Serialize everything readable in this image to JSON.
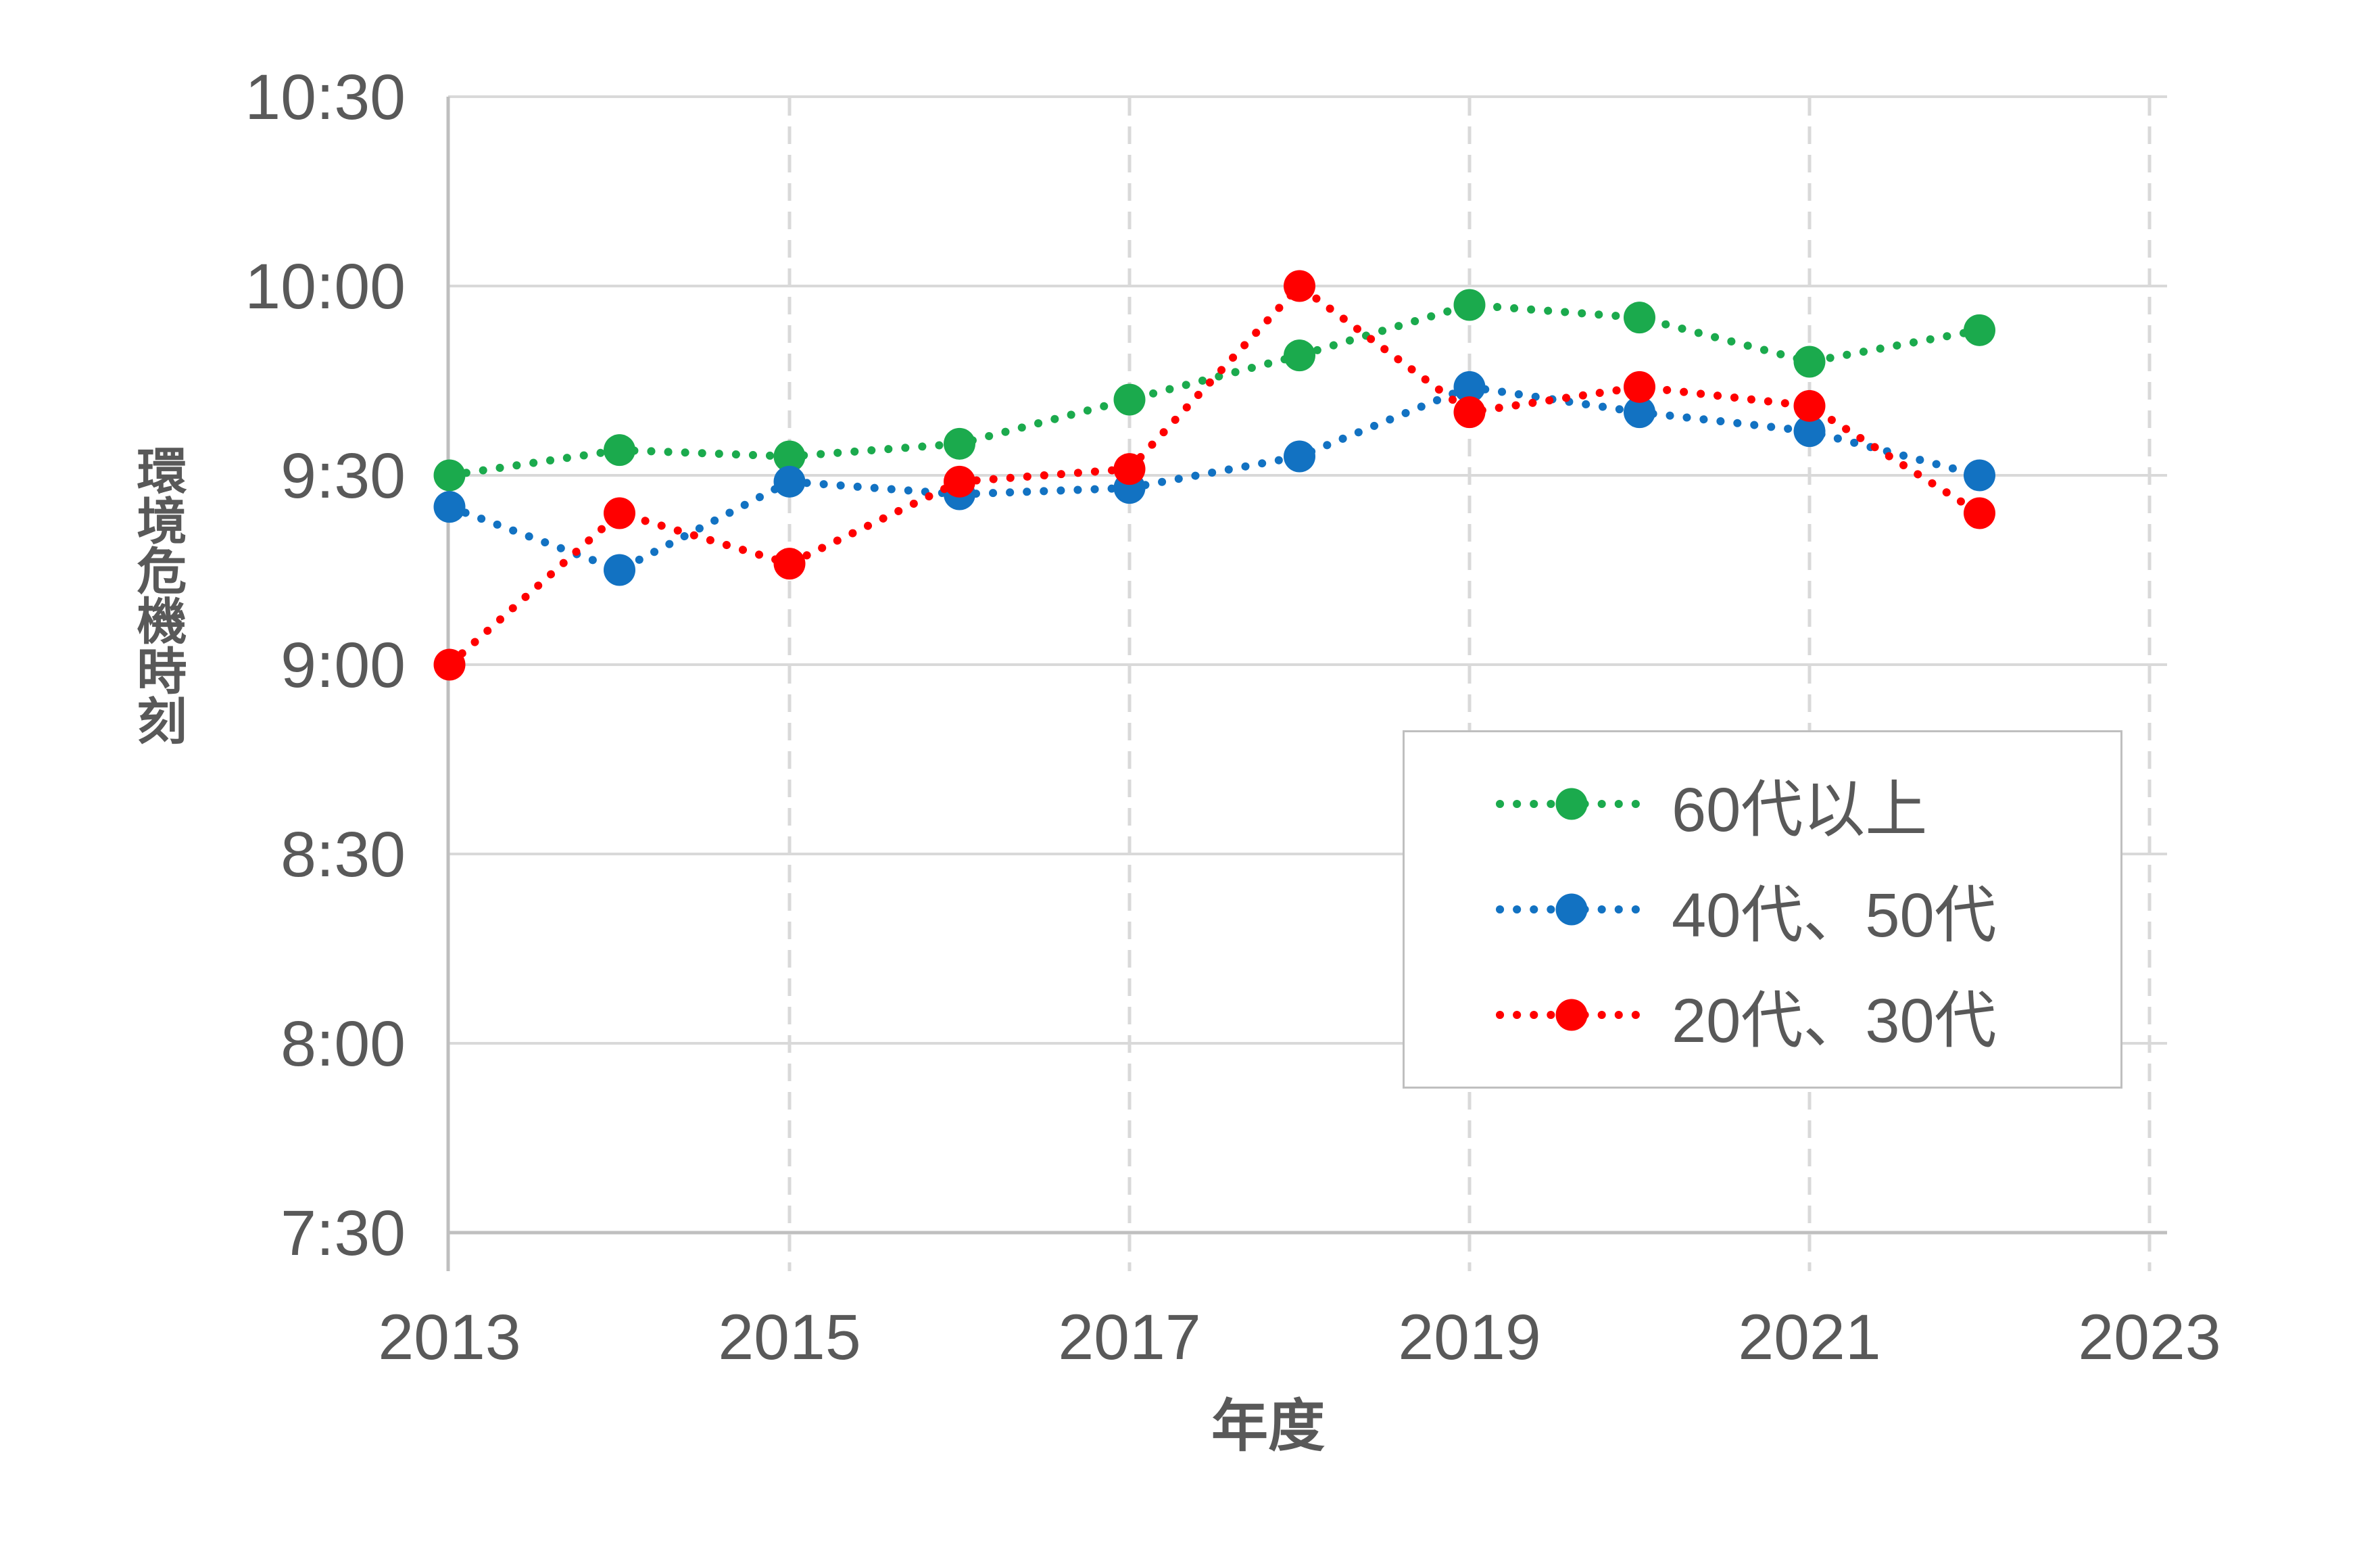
{
  "chart_data": {
    "type": "line",
    "style": "dotted-lines-with-circle-markers",
    "xlabel": "年度",
    "ylabel": "環境危機時刻",
    "x": [
      2013,
      2014,
      2015,
      2016,
      2017,
      2018,
      2019,
      2020,
      2021,
      2022
    ],
    "x_tick_labels": [
      "2013",
      "2015",
      "2017",
      "2019",
      "2021",
      "2023"
    ],
    "y_tick_labels": [
      "10:30",
      "10:00",
      "9:30",
      "9:00",
      "8:30",
      "8:00",
      "7:30"
    ],
    "xlim": [
      2013,
      2023
    ],
    "ylim": [
      "7:30",
      "10:30"
    ],
    "grid": "horizontal solid gridlines every 30 min; vertical dashed gridlines at odd years",
    "legend_position": "inside lower-right",
    "series": [
      {
        "name": "60代以上",
        "color": "#1BAA4D",
        "values": [
          "9:30",
          "9:34",
          "9:33",
          "9:35",
          "9:42",
          "9:49",
          "9:57",
          "9:55",
          "9:48",
          "9:53"
        ]
      },
      {
        "name": "40代、50代",
        "color": "#1272C2",
        "values": [
          "9:25",
          "9:15",
          "9:29",
          "9:27",
          "9:28",
          "9:33",
          "9:44",
          "9:40",
          "9:37",
          "9:30"
        ]
      },
      {
        "name": "20代、30代",
        "color": "#FF0000",
        "values": [
          "9:00",
          "9:24",
          "9:16",
          "9:29",
          "9:31",
          "10:00",
          "9:40",
          "9:44",
          "9:41",
          "9:24"
        ]
      }
    ]
  },
  "colors": {
    "gridline": "#D9D9D9",
    "axis_line": "#BFBFBF",
    "tick_text": "#595959",
    "title_text": "#595959",
    "legend_border": "#BFBFBF",
    "background": "#FFFFFF"
  }
}
